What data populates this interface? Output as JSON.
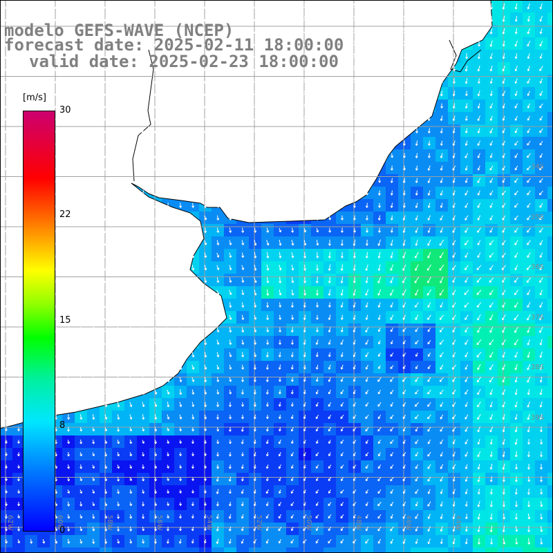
{
  "title": {
    "line1": "modelo GEFS-WAVE (NCEP)",
    "line2": "forecast date: 2025-02-11 18:00:00",
    "line3": "valid date: 2025-02-23 18:00:00"
  },
  "colorbar": {
    "unit": "[m/s]",
    "ticks": [
      {
        "label": "30",
        "value": 30
      },
      {
        "label": "22",
        "value": 22
      },
      {
        "label": "15",
        "value": 15
      },
      {
        "label": "8",
        "value": 8
      },
      {
        "label": "0",
        "value": 0
      }
    ],
    "colors": [
      "#0000ff",
      "#0078ff",
      "#00e6ff",
      "#00f0a0",
      "#00ff00",
      "#ffff00",
      "#ff5a00",
      "#ff0000",
      "#cc0070"
    ]
  },
  "map": {
    "variable": "wind speed and direction",
    "land_color": "#ffffff",
    "latitude_labels": [
      "34S",
      "35S",
      "36S",
      "37S",
      "38S",
      "39S",
      "40S",
      "41S"
    ],
    "longitude_labels": [
      "62W",
      "60W",
      "58W",
      "56W",
      "54W",
      "52W",
      "50W",
      "48W",
      "46W",
      "44W"
    ]
  }
}
